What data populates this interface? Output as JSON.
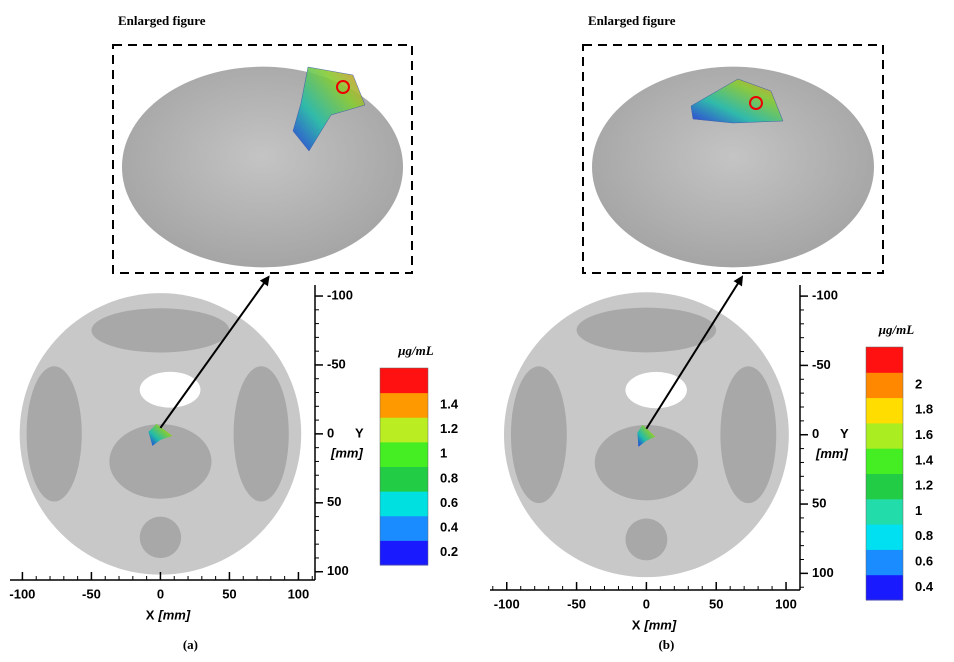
{
  "panels": [
    {
      "title": "Enlarged figure",
      "caption": "(a)",
      "x_label": "X",
      "x_unit": "[mm]",
      "y_label": "Y",
      "y_unit": "[mm]",
      "xlim": [
        -109,
        112
      ],
      "xticks": [
        -100,
        -50,
        0,
        50,
        100
      ],
      "ylim": [
        -108,
        106
      ],
      "yticks": [
        -100,
        -50,
        0,
        50,
        100
      ],
      "colorbar": {
        "unit": "μg/mL",
        "labels": [
          "0.2",
          "0.4",
          "0.6",
          "0.8",
          "1",
          "1.2",
          "1.4"
        ],
        "colors": [
          "#1a1aff",
          "#1a8cff",
          "#00e0e0",
          "#22cc44",
          "#44ee22",
          "#bbee22",
          "#ff9900",
          "#ff1111"
        ]
      }
    },
    {
      "title": "Enlarged figure",
      "caption": "(b)",
      "x_label": "X",
      "x_unit": "[mm]",
      "y_label": "Y",
      "y_unit": "[mm]",
      "xlim": [
        -112,
        110
      ],
      "xticks": [
        -100,
        -50,
        0,
        50,
        100
      ],
      "ylim": [
        -108,
        112
      ],
      "yticks": [
        -100,
        -50,
        0,
        50,
        100
      ],
      "colorbar": {
        "unit": "μg/mL",
        "labels": [
          "0.4",
          "0.6",
          "0.8",
          "1",
          "1.2",
          "1.4",
          "1.6",
          "1.8",
          "2"
        ],
        "colors": [
          "#1a1aff",
          "#1a8cff",
          "#00e0f0",
          "#22ddaa",
          "#22cc44",
          "#44ee22",
          "#aaee22",
          "#ffdd00",
          "#ff8800",
          "#ff1111"
        ]
      }
    }
  ]
}
